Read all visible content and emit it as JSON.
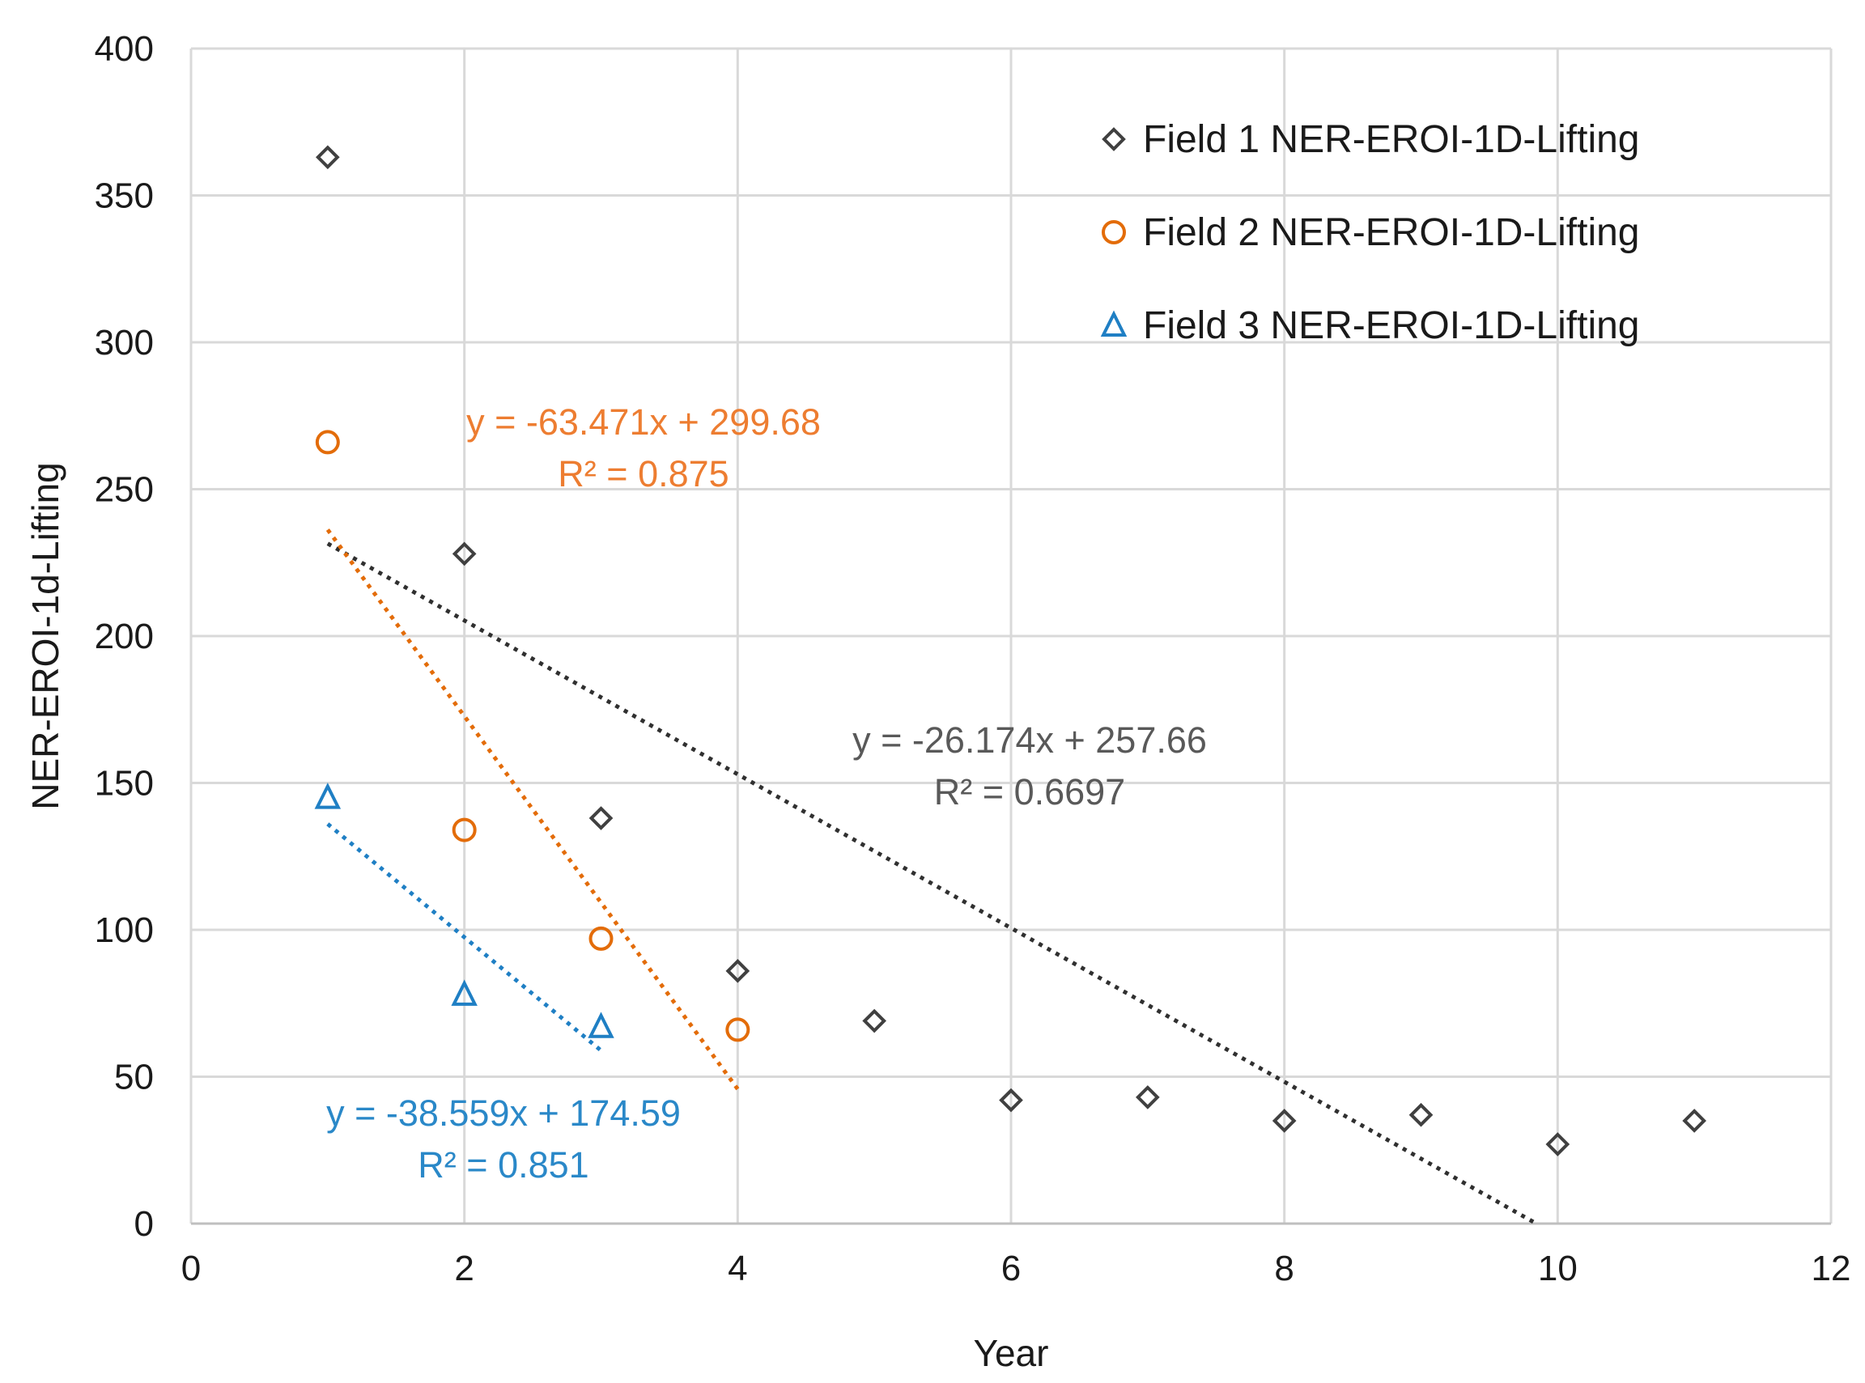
{
  "chart_data": {
    "type": "scatter",
    "title": "",
    "xlabel": "Year",
    "ylabel": "NER-EROI-1d-Lifting",
    "xlim": [
      0,
      12
    ],
    "ylim": [
      0,
      400
    ],
    "xticks": [
      0,
      2,
      4,
      6,
      8,
      10,
      12
    ],
    "yticks": [
      0,
      50,
      100,
      150,
      200,
      250,
      300,
      350,
      400
    ],
    "grid": true,
    "legend_position": "top-right",
    "series": [
      {
        "name": "Field 1 NER-EROI-1D-Lifting",
        "marker": "diamond",
        "color": "#404040",
        "x": [
          1,
          2,
          3,
          4,
          5,
          6,
          7,
          8,
          9,
          10,
          11
        ],
        "y": [
          363,
          228,
          138,
          86,
          69,
          42,
          43,
          35,
          37,
          27,
          35
        ],
        "trendline": {
          "slope": -26.174,
          "intercept": 257.66,
          "x_range": [
            1,
            9.84
          ],
          "color": "#303030",
          "equation": "y = -26.174x + 257.66",
          "r2": "R² = 0.6697",
          "equation_color": "#595959"
        }
      },
      {
        "name": "Field 2 NER-EROI-1D-Lifting",
        "marker": "circle",
        "color": "#E36C09",
        "x": [
          1,
          2,
          3,
          4
        ],
        "y": [
          266,
          134,
          97,
          66
        ],
        "trendline": {
          "slope": -63.471,
          "intercept": 299.68,
          "x_range": [
            1,
            4
          ],
          "color": "#E36C09",
          "equation": "y = -63.471x + 299.68",
          "r2": "R² = 0.875",
          "equation_color": "#ED7D31"
        }
      },
      {
        "name": "Field 3 NER-EROI-1D-Lifting",
        "marker": "triangle",
        "color": "#1F7FC4",
        "x": [
          1,
          2,
          3
        ],
        "y": [
          145,
          78,
          67
        ],
        "trendline": {
          "slope": -38.559,
          "intercept": 174.59,
          "x_range": [
            1,
            3
          ],
          "color": "#1F7FC4",
          "equation": "y = -38.559x + 174.59",
          "r2": "R² = 0.851",
          "equation_color": "#2A88C8"
        }
      }
    ]
  }
}
